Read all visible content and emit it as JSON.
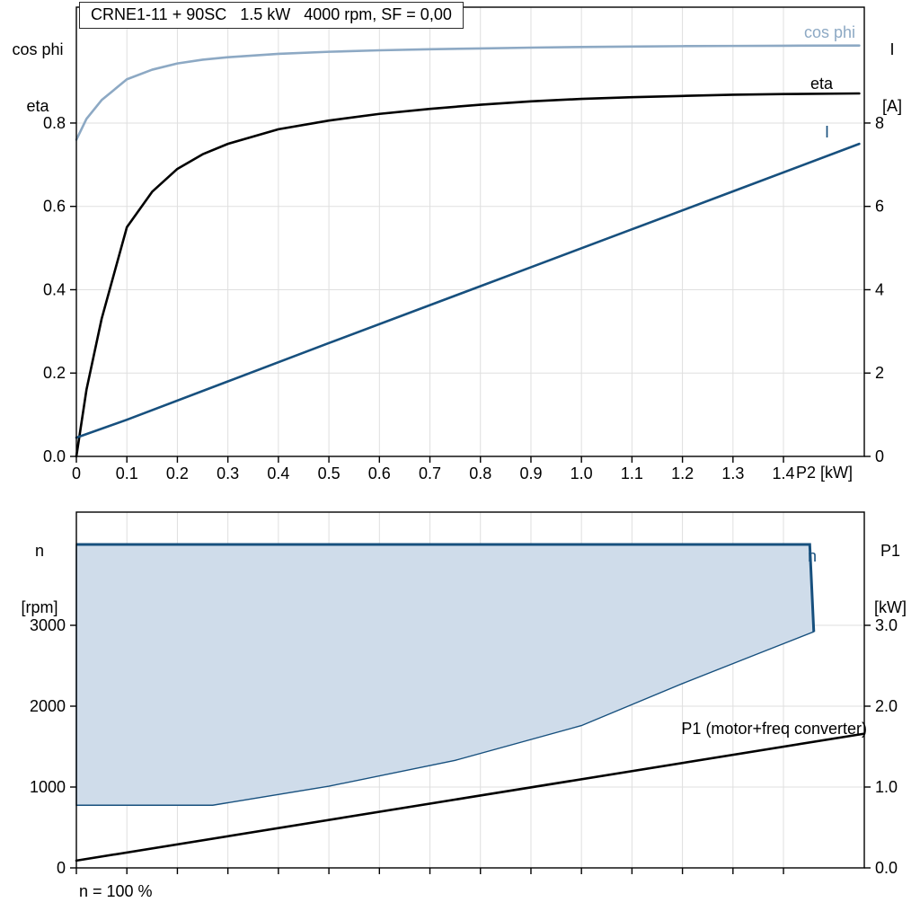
{
  "page": {
    "background": "#ffffff"
  },
  "colors": {
    "cos_phi": "#8da9c4",
    "eta": "#000000",
    "current_blue": "#17507e",
    "area_fill": "#cfdcea",
    "grid": "#dfdfdf",
    "frame": "#000000"
  },
  "chart_data": [
    {
      "type": "line",
      "title": "CRNE1-11 + 90SC   1.5 kW   4000 rpm, SF = 0,00",
      "xlabel": "P2 [kW]",
      "ylabel_left": {
        "line1": "cos phi",
        "line2": "eta"
      },
      "ylabel_right": {
        "line1": "I",
        "line2": "[A]"
      },
      "xlim": [
        0,
        1.56
      ],
      "ylim_left": [
        0,
        1.078
      ],
      "ylim_right": [
        0,
        10.78
      ],
      "grid": true,
      "legend_position": "curve-end-labels",
      "x_ticks": [
        0,
        0.1,
        0.2,
        0.3,
        0.4,
        0.5,
        0.6,
        0.7,
        0.8,
        0.9,
        1.0,
        1.1,
        1.2,
        1.3,
        1.4
      ],
      "x_tick_labels": [
        "0",
        "0.1",
        "0.2",
        "0.3",
        "0.4",
        "0.5",
        "0.6",
        "0.7",
        "0.8",
        "0.9",
        "1.0",
        "1.1",
        "1.2",
        "1.3",
        "1.4"
      ],
      "y_ticks_left": [
        0,
        0.2,
        0.4,
        0.6,
        0.8
      ],
      "y_tick_labels_left": [
        "0.0",
        "0.2",
        "0.4",
        "0.6",
        "0.8"
      ],
      "y_ticks_right": [
        0,
        2,
        4,
        6,
        8
      ],
      "y_tick_labels_right": [
        "0",
        "2",
        "4",
        "6",
        "8"
      ],
      "series": [
        {
          "name": "cos phi",
          "axis": "left",
          "color": "#8da9c4",
          "x": [
            0,
            0.02,
            0.05,
            0.1,
            0.15,
            0.2,
            0.25,
            0.3,
            0.4,
            0.5,
            0.6,
            0.7,
            0.8,
            0.9,
            1.0,
            1.1,
            1.2,
            1.3,
            1.4,
            1.55
          ],
          "y": [
            0.76,
            0.81,
            0.855,
            0.905,
            0.928,
            0.943,
            0.952,
            0.958,
            0.966,
            0.971,
            0.9745,
            0.977,
            0.979,
            0.981,
            0.9825,
            0.9835,
            0.9845,
            0.985,
            0.9855,
            0.986
          ]
        },
        {
          "name": "eta",
          "axis": "left",
          "color": "#000000",
          "x": [
            0,
            0.02,
            0.05,
            0.1,
            0.15,
            0.2,
            0.25,
            0.3,
            0.4,
            0.5,
            0.6,
            0.7,
            0.8,
            0.9,
            1.0,
            1.1,
            1.2,
            1.3,
            1.4,
            1.55
          ],
          "y": [
            0,
            0.16,
            0.33,
            0.55,
            0.635,
            0.69,
            0.725,
            0.75,
            0.785,
            0.806,
            0.822,
            0.834,
            0.844,
            0.852,
            0.858,
            0.862,
            0.865,
            0.868,
            0.8695,
            0.871
          ]
        },
        {
          "name": "I",
          "axis": "right",
          "color": "#17507e",
          "x": [
            0,
            0.1,
            0.3,
            0.5,
            0.7,
            0.9,
            1.1,
            1.3,
            1.55
          ],
          "y": [
            0.45,
            0.88,
            1.8,
            2.72,
            3.63,
            4.54,
            5.45,
            6.36,
            7.5
          ]
        }
      ]
    },
    {
      "type": "area",
      "title": "",
      "xlabel": "",
      "ylabel_left": {
        "line1": "n",
        "line2": "[rpm]"
      },
      "ylabel_right": {
        "line1": "P1",
        "line2": "[kW]"
      },
      "xlim": [
        0,
        1.56
      ],
      "ylim_left": [
        0,
        4400
      ],
      "ylim_right": [
        0,
        4.4
      ],
      "grid": true,
      "x_ticks": [
        0,
        0.1,
        0.2,
        0.3,
        0.4,
        0.5,
        0.6,
        0.7,
        0.8,
        0.9,
        1.0,
        1.1,
        1.2,
        1.3,
        1.4
      ],
      "x_tick_labels": null,
      "y_ticks_left": [
        0,
        1000,
        2000,
        3000
      ],
      "y_tick_labels_left": [
        "0",
        "1000",
        "2000",
        "3000"
      ],
      "y_ticks_right": [
        0,
        1,
        2,
        3
      ],
      "y_tick_labels_right": [
        "0.0",
        "1.0",
        "2.0",
        "3.0"
      ],
      "area": {
        "name": "n",
        "fill": "#cfdcea",
        "stroke": "#17507e",
        "polygon": [
          [
            0,
            4000
          ],
          [
            1.452,
            4000
          ],
          [
            1.46,
            2920
          ],
          [
            1.35,
            2650
          ],
          [
            1.2,
            2280
          ],
          [
            1.0,
            1760
          ],
          [
            0.75,
            1330
          ],
          [
            0.5,
            1010
          ],
          [
            0.27,
            775
          ],
          [
            0,
            775
          ]
        ],
        "top_edge": [
          [
            0,
            4000
          ],
          [
            1.452,
            4000
          ],
          [
            1.46,
            2920
          ]
        ]
      },
      "series": [
        {
          "name": "P1 (motor+freq converter)",
          "axis": "right",
          "color": "#000000",
          "x": [
            0,
            1.56
          ],
          "y": [
            0.09,
            1.66
          ]
        }
      ],
      "footer": "n = 100 %"
    }
  ]
}
